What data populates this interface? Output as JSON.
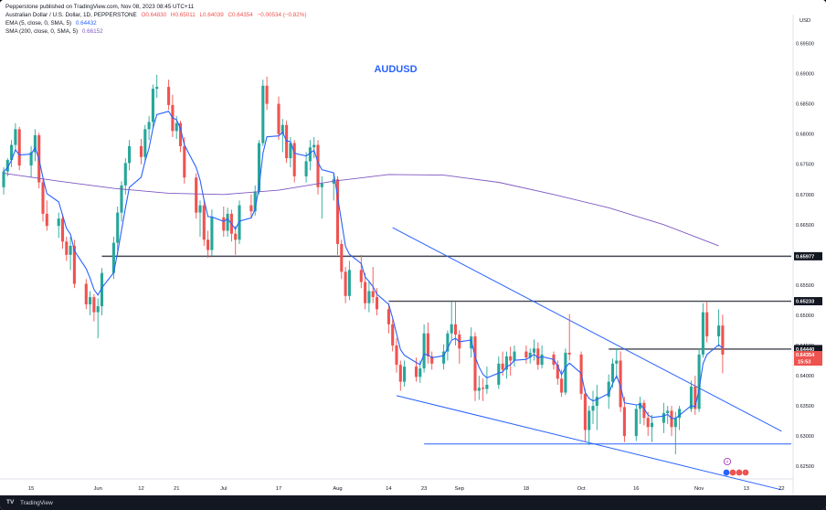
{
  "header": {
    "published_line": "Pepperstone published on TradingView.com, Nov 08, 2023 08:45 UTC+11",
    "symbol_line": "Australian Dollar / U.S. Dollar, 1D, PEPPERSTONE",
    "ohlc": {
      "open": "O0.64830",
      "high": "H0.65011",
      "low": "L0.64039",
      "close": "C0.64354",
      "change": "−0.00534 (−0.82%)"
    },
    "ema_label": "EMA (5, close, 0, SMA, 5)",
    "ema_value": "0.64432",
    "sma_label": "SMA (200, close, 0, SMA, 5)",
    "sma_value": "0.66152"
  },
  "footer": {
    "brand": "TradingView",
    "logo_glyph": "TV"
  },
  "chart_data": {
    "type": "candlestick",
    "title": "AUDUSD",
    "currency": "USD",
    "ylim": [
      0.622,
      0.6975
    ],
    "y_ticks": [
      "0.69500",
      "0.69000",
      "0.68500",
      "0.68000",
      "0.67500",
      "0.67000",
      "0.66500",
      "0.66000",
      "0.65500",
      "0.65000",
      "0.64500",
      "0.64000",
      "0.63500",
      "0.63000",
      "0.62500"
    ],
    "x_ticks": [
      "15",
      "Jun",
      "12",
      "21",
      "Jul",
      "17",
      "Aug",
      "14",
      "23",
      "Sep",
      "18",
      "Oct",
      "16",
      "Nov",
      "13",
      "22"
    ],
    "x_tick_dates": [
      "2023-05-15",
      "2023-06-01",
      "2023-06-12",
      "2023-06-21",
      "2023-07-03",
      "2023-07-17",
      "2023-08-01",
      "2023-08-14",
      "2023-08-23",
      "2023-09-01",
      "2023-09-18",
      "2023-10-02",
      "2023-10-16",
      "2023-11-01",
      "2023-11-13",
      "2023-11-22"
    ],
    "up_color": "#26a69a",
    "down_color": "#ef5350",
    "ema_color": "#2962ff",
    "sma_color": "#7e57c2",
    "candles": [
      [
        "2023-05-08",
        0.6712,
        0.6745,
        0.67,
        0.6738
      ],
      [
        "2023-05-09",
        0.6738,
        0.676,
        0.673,
        0.6757
      ],
      [
        "2023-05-10",
        0.6757,
        0.679,
        0.6745,
        0.6782
      ],
      [
        "2023-05-11",
        0.6782,
        0.6818,
        0.6772,
        0.6808
      ],
      [
        "2023-05-12",
        0.6808,
        0.6812,
        0.674,
        0.6748
      ],
      [
        "2023-05-15",
        0.6748,
        0.678,
        0.6728,
        0.677
      ],
      [
        "2023-05-16",
        0.677,
        0.6808,
        0.6755,
        0.6798
      ],
      [
        "2023-05-17",
        0.6798,
        0.6802,
        0.671,
        0.672
      ],
      [
        "2023-05-18",
        0.672,
        0.673,
        0.6655,
        0.6668
      ],
      [
        "2023-05-19",
        0.6668,
        0.669,
        0.664,
        0.6648
      ],
      [
        "2023-05-22",
        0.6648,
        0.667,
        0.6628,
        0.666
      ],
      [
        "2023-05-23",
        0.666,
        0.6668,
        0.661,
        0.6622
      ],
      [
        "2023-05-24",
        0.6622,
        0.663,
        0.659,
        0.66
      ],
      [
        "2023-05-25",
        0.66,
        0.663,
        0.6575,
        0.6615
      ],
      [
        "2023-05-26",
        0.6615,
        0.6625,
        0.6545,
        0.6552
      ],
      [
        "2023-05-29",
        0.6552,
        0.656,
        0.651,
        0.6518
      ],
      [
        "2023-05-30",
        0.6518,
        0.654,
        0.65,
        0.653
      ],
      [
        "2023-05-31",
        0.653,
        0.6535,
        0.649,
        0.6505
      ],
      [
        "2023-06-01",
        0.6505,
        0.6528,
        0.6462,
        0.6515
      ],
      [
        "2023-06-02",
        0.6515,
        0.6578,
        0.65,
        0.657
      ],
      [
        "2023-06-05",
        0.657,
        0.663,
        0.656,
        0.662
      ],
      [
        "2023-06-06",
        0.662,
        0.668,
        0.66,
        0.667
      ],
      [
        "2023-06-07",
        0.667,
        0.6722,
        0.6655,
        0.6715
      ],
      [
        "2023-06-08",
        0.6715,
        0.676,
        0.67,
        0.6752
      ],
      [
        "2023-06-09",
        0.6752,
        0.679,
        0.674,
        0.678
      ],
      [
        "2023-06-12",
        0.678,
        0.6792,
        0.675,
        0.6762
      ],
      [
        "2023-06-13",
        0.6762,
        0.6815,
        0.6755,
        0.6808
      ],
      [
        "2023-06-14",
        0.6808,
        0.683,
        0.679,
        0.682
      ],
      [
        "2023-06-15",
        0.682,
        0.6882,
        0.681,
        0.6875
      ],
      [
        "2023-06-16",
        0.6875,
        0.6898,
        0.686,
        0.6878
      ],
      [
        "2023-06-19",
        0.6878,
        0.689,
        0.684,
        0.6848
      ],
      [
        "2023-06-20",
        0.6848,
        0.6865,
        0.6795,
        0.6805
      ],
      [
        "2023-06-21",
        0.6805,
        0.683,
        0.6792,
        0.6818
      ],
      [
        "2023-06-22",
        0.6818,
        0.6822,
        0.677,
        0.678
      ],
      [
        "2023-06-23",
        0.678,
        0.6795,
        0.6718,
        0.6728
      ],
      [
        "2023-06-26",
        0.6728,
        0.6735,
        0.666,
        0.667
      ],
      [
        "2023-06-27",
        0.667,
        0.669,
        0.663,
        0.6682
      ],
      [
        "2023-06-28",
        0.6682,
        0.669,
        0.6615,
        0.6625
      ],
      [
        "2023-06-29",
        0.6625,
        0.664,
        0.6595,
        0.6608
      ],
      [
        "2023-06-30",
        0.6608,
        0.6675,
        0.6598,
        0.6662
      ],
      [
        "2023-07-03",
        0.6662,
        0.668,
        0.663,
        0.664
      ],
      [
        "2023-07-04",
        0.664,
        0.6678,
        0.663,
        0.6668
      ],
      [
        "2023-07-05",
        0.6668,
        0.6675,
        0.6622,
        0.6635
      ],
      [
        "2023-07-06",
        0.6635,
        0.6648,
        0.66,
        0.6625
      ],
      [
        "2023-07-07",
        0.6625,
        0.669,
        0.6618,
        0.6682
      ],
      [
        "2023-07-10",
        0.6682,
        0.67,
        0.666,
        0.6672
      ],
      [
        "2023-07-11",
        0.6672,
        0.6715,
        0.6665,
        0.6705
      ],
      [
        "2023-07-12",
        0.6705,
        0.679,
        0.67,
        0.6785
      ],
      [
        "2023-07-13",
        0.6785,
        0.689,
        0.678,
        0.688
      ],
      [
        "2023-07-14",
        0.688,
        0.6895,
        0.684,
        0.685
      ],
      [
        "2023-07-17",
        0.685,
        0.6862,
        0.679,
        0.68
      ],
      [
        "2023-07-18",
        0.68,
        0.6825,
        0.677,
        0.6815
      ],
      [
        "2023-07-19",
        0.6815,
        0.6822,
        0.6752,
        0.676
      ],
      [
        "2023-07-20",
        0.676,
        0.6795,
        0.6745,
        0.6785
      ],
      [
        "2023-07-21",
        0.6785,
        0.679,
        0.672,
        0.673
      ],
      [
        "2023-07-24",
        0.673,
        0.677,
        0.672,
        0.6755
      ],
      [
        "2023-07-25",
        0.6755,
        0.679,
        0.674,
        0.6778
      ],
      [
        "2023-07-26",
        0.6778,
        0.6795,
        0.676,
        0.6782
      ],
      [
        "2023-07-27",
        0.6782,
        0.679,
        0.67,
        0.6712
      ],
      [
        "2023-07-28",
        0.6712,
        0.673,
        0.666,
        0.6718
      ],
      [
        "2023-07-31",
        0.6718,
        0.6735,
        0.669,
        0.6725
      ],
      [
        "2023-08-01",
        0.6725,
        0.673,
        0.66,
        0.6618
      ],
      [
        "2023-08-02",
        0.6618,
        0.6625,
        0.656,
        0.6572
      ],
      [
        "2023-08-03",
        0.6572,
        0.658,
        0.652,
        0.6532
      ],
      [
        "2023-08-04",
        0.6532,
        0.659,
        0.6525,
        0.6575
      ],
      [
        "2023-08-07",
        0.6575,
        0.66,
        0.6545,
        0.6555
      ],
      [
        "2023-08-08",
        0.6555,
        0.657,
        0.651,
        0.652
      ],
      [
        "2023-08-09",
        0.652,
        0.6555,
        0.6505,
        0.654
      ],
      [
        "2023-08-10",
        0.654,
        0.658,
        0.652,
        0.653
      ],
      [
        "2023-08-11",
        0.653,
        0.6545,
        0.65,
        0.651
      ],
      [
        "2023-08-14",
        0.651,
        0.652,
        0.647,
        0.6485
      ],
      [
        "2023-08-15",
        0.6485,
        0.6495,
        0.644,
        0.645
      ],
      [
        "2023-08-16",
        0.645,
        0.6462,
        0.6405,
        0.6418
      ],
      [
        "2023-08-17",
        0.6418,
        0.6425,
        0.6375,
        0.639
      ],
      [
        "2023-08-18",
        0.639,
        0.6425,
        0.6382,
        0.6415
      ],
      [
        "2023-08-21",
        0.6415,
        0.643,
        0.639,
        0.6398
      ],
      [
        "2023-08-22",
        0.6398,
        0.6425,
        0.6388,
        0.6412
      ],
      [
        "2023-08-23",
        0.6412,
        0.6485,
        0.6405,
        0.647
      ],
      [
        "2023-08-24",
        0.647,
        0.6488,
        0.642,
        0.6432
      ],
      [
        "2023-08-25",
        0.6432,
        0.644,
        0.641,
        0.642
      ],
      [
        "2023-08-28",
        0.642,
        0.6452,
        0.641,
        0.644
      ],
      [
        "2023-08-29",
        0.644,
        0.6475,
        0.6425,
        0.647
      ],
      [
        "2023-08-30",
        0.647,
        0.6522,
        0.646,
        0.6485
      ],
      [
        "2023-08-31",
        0.6485,
        0.6522,
        0.645,
        0.6468
      ],
      [
        "2023-09-01",
        0.6468,
        0.6475,
        0.642,
        0.6445
      ],
      [
        "2023-09-04",
        0.6445,
        0.648,
        0.643,
        0.6465
      ],
      [
        "2023-09-05",
        0.6465,
        0.6472,
        0.6358,
        0.6375
      ],
      [
        "2023-09-06",
        0.6375,
        0.64,
        0.636,
        0.638
      ],
      [
        "2023-09-07",
        0.638,
        0.6395,
        0.6358,
        0.6378
      ],
      [
        "2023-09-08",
        0.6378,
        0.6415,
        0.637,
        0.6385
      ],
      [
        "2023-09-11",
        0.6385,
        0.6432,
        0.6378,
        0.642
      ],
      [
        "2023-09-12",
        0.642,
        0.644,
        0.64,
        0.641
      ],
      [
        "2023-09-13",
        0.641,
        0.644,
        0.6395,
        0.6432
      ],
      [
        "2023-09-14",
        0.6432,
        0.6448,
        0.64,
        0.6425
      ],
      [
        "2023-09-15",
        0.6425,
        0.645,
        0.6415,
        0.644
      ],
      [
        "2023-09-18",
        0.644,
        0.645,
        0.642,
        0.643
      ],
      [
        "2023-09-19",
        0.643,
        0.6445,
        0.642,
        0.6438
      ],
      [
        "2023-09-20",
        0.6438,
        0.646,
        0.6425,
        0.6445
      ],
      [
        "2023-09-21",
        0.6445,
        0.6455,
        0.641,
        0.6418
      ],
      [
        "2023-09-22",
        0.6418,
        0.645,
        0.6412,
        0.6435
      ],
      [
        "2023-09-25",
        0.6435,
        0.644,
        0.641,
        0.6418
      ],
      [
        "2023-09-26",
        0.6418,
        0.6425,
        0.6385,
        0.6395
      ],
      [
        "2023-09-27",
        0.6395,
        0.641,
        0.6365,
        0.6372
      ],
      [
        "2023-09-28",
        0.6372,
        0.6445,
        0.6368,
        0.6438
      ],
      [
        "2023-09-29",
        0.6438,
        0.6502,
        0.6425,
        0.6435
      ],
      [
        "2023-10-02",
        0.6435,
        0.644,
        0.636,
        0.637
      ],
      [
        "2023-10-03",
        0.637,
        0.6378,
        0.629,
        0.631
      ],
      [
        "2023-10-04",
        0.631,
        0.635,
        0.6285,
        0.6342
      ],
      [
        "2023-10-05",
        0.6342,
        0.6375,
        0.632,
        0.635
      ],
      [
        "2023-10-06",
        0.635,
        0.6385,
        0.631,
        0.6365
      ],
      [
        "2023-10-09",
        0.6365,
        0.6402,
        0.6345,
        0.639
      ],
      [
        "2023-10-10",
        0.639,
        0.6428,
        0.638,
        0.642
      ],
      [
        "2023-10-11",
        0.642,
        0.6445,
        0.6395,
        0.6425
      ],
      [
        "2023-10-12",
        0.6425,
        0.644,
        0.634,
        0.6348
      ],
      [
        "2023-10-13",
        0.6348,
        0.6365,
        0.629,
        0.63
      ],
      [
        "2023-10-16",
        0.63,
        0.6352,
        0.6292,
        0.6345
      ],
      [
        "2023-10-17",
        0.6345,
        0.6365,
        0.632,
        0.6355
      ],
      [
        "2023-10-18",
        0.6355,
        0.636,
        0.6318,
        0.633
      ],
      [
        "2023-10-19",
        0.633,
        0.634,
        0.63,
        0.6315
      ],
      [
        "2023-10-20",
        0.6315,
        0.6335,
        0.629,
        0.6322
      ],
      [
        "2023-10-23",
        0.6322,
        0.6355,
        0.6305,
        0.6338
      ],
      [
        "2023-10-24",
        0.6338,
        0.635,
        0.632,
        0.6342
      ],
      [
        "2023-10-25",
        0.6342,
        0.635,
        0.63,
        0.6315
      ],
      [
        "2023-10-26",
        0.6315,
        0.634,
        0.627,
        0.633
      ],
      [
        "2023-10-27",
        0.633,
        0.635,
        0.631,
        0.6345
      ],
      [
        "2023-10-30",
        0.6345,
        0.6392,
        0.634,
        0.6382
      ],
      [
        "2023-10-31",
        0.6382,
        0.64,
        0.6335,
        0.6345
      ],
      [
        "2023-11-01",
        0.6345,
        0.6445,
        0.634,
        0.6435
      ],
      [
        "2023-11-02",
        0.6435,
        0.652,
        0.643,
        0.6505
      ],
      [
        "2023-11-03",
        0.6505,
        0.6522,
        0.6455,
        0.6465
      ],
      [
        "2023-11-06",
        0.6465,
        0.651,
        0.6448,
        0.6483
      ],
      [
        "2023-11-07",
        0.6483,
        0.6501,
        0.6404,
        0.6435
      ]
    ],
    "sma_200": [
      [
        "2023-05-08",
        0.6735
      ],
      [
        "2023-05-22",
        0.6722
      ],
      [
        "2023-06-05",
        0.671
      ],
      [
        "2023-06-19",
        0.6702
      ],
      [
        "2023-07-03",
        0.67
      ],
      [
        "2023-07-17",
        0.6707
      ],
      [
        "2023-07-31",
        0.6722
      ],
      [
        "2023-08-14",
        0.6733
      ],
      [
        "2023-08-28",
        0.6732
      ],
      [
        "2023-09-11",
        0.672
      ],
      [
        "2023-09-25",
        0.67
      ],
      [
        "2023-10-09",
        0.6678
      ],
      [
        "2023-10-23",
        0.665
      ],
      [
        "2023-11-06",
        0.6615
      ]
    ],
    "horizontal_levels": [
      {
        "price": 0.65977,
        "label": "0.65977",
        "from": "2023-06-02"
      },
      {
        "price": 0.65233,
        "label": "0.65233",
        "from": "2023-08-14"
      },
      {
        "price": 0.6444,
        "label": "0.64440",
        "from": "2023-10-09"
      },
      {
        "price": 0.6287,
        "label": "",
        "from": "2023-08-23"
      }
    ],
    "price_tags": [
      {
        "price": 0.64354,
        "label": "0.64354",
        "sublabel": "15:53"
      }
    ],
    "trend_lines": [
      {
        "from": [
          "2023-08-15",
          0.6645
        ],
        "to": [
          "2023-11-22",
          0.6308
        ]
      },
      {
        "from": [
          "2023-08-16",
          0.6367
        ],
        "to": [
          "2023-11-22",
          0.6211
        ]
      }
    ],
    "x_range": [
      "2023-05-08",
      "2023-11-24"
    ],
    "grid": false
  }
}
